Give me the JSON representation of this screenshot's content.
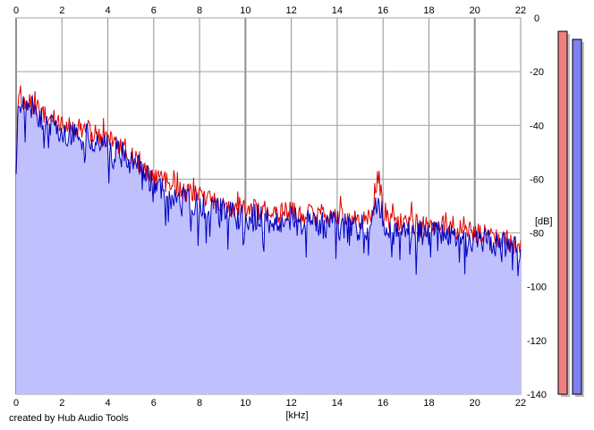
{
  "chart_data": {
    "type": "area",
    "x_unit": "[kHz]",
    "y_unit": "[dB]",
    "xlim": [
      0,
      22
    ],
    "ylim": [
      -140,
      0
    ],
    "x_ticks": [
      0,
      2,
      4,
      6,
      8,
      10,
      12,
      14,
      16,
      18,
      20,
      22
    ],
    "y_ticks": [
      0,
      -20,
      -40,
      -60,
      -80,
      -100,
      -120,
      -140
    ],
    "grid": true,
    "fill_color": "#c0c0ff",
    "series": [
      {
        "color": "#0000c0",
        "x": [
          0,
          0.1,
          0.3,
          0.6,
          1.0,
          1.5,
          2.0,
          2.5,
          3.0,
          3.5,
          4.0,
          4.5,
          5.0,
          5.5,
          6.0,
          6.5,
          7.0,
          7.5,
          8.0,
          8.5,
          9.0,
          9.5,
          10.0,
          10.5,
          11.0,
          11.5,
          12.0,
          12.5,
          13.0,
          13.5,
          14.0,
          14.5,
          15.0,
          15.5,
          15.8,
          16.0,
          16.5,
          17.0,
          17.5,
          18.0,
          18.5,
          19.0,
          19.5,
          20.0,
          20.5,
          21.0,
          21.5,
          22.0
        ],
        "y": [
          -58,
          -28,
          -34,
          -33,
          -36,
          -40,
          -42,
          -44,
          -44,
          -46,
          -47,
          -50,
          -53,
          -57,
          -62,
          -64,
          -66,
          -68,
          -69,
          -71,
          -72,
          -73,
          -74,
          -74,
          -75,
          -76,
          -75,
          -76,
          -76,
          -77,
          -77,
          -78,
          -78,
          -78,
          -64,
          -76,
          -79,
          -80,
          -80,
          -80,
          -81,
          -81,
          -82,
          -82,
          -83,
          -84,
          -85,
          -88
        ]
      },
      {
        "color": "#e00000",
        "x": [
          0,
          0.1,
          0.3,
          0.6,
          1.0,
          1.5,
          2.0,
          2.5,
          3.0,
          3.5,
          4.0,
          4.5,
          5.0,
          5.5,
          6.0,
          6.5,
          7.0,
          7.5,
          8.0,
          8.5,
          9.0,
          9.5,
          10.0,
          10.5,
          11.0,
          11.5,
          12.0,
          12.5,
          13.0,
          13.5,
          14.0,
          14.5,
          15.0,
          15.5,
          15.8,
          16.0,
          16.5,
          17.0,
          17.5,
          18.0,
          18.5,
          19.0,
          19.5,
          20.0,
          20.5,
          21.0,
          21.5,
          22.0
        ],
        "y": [
          -55,
          -26,
          -32,
          -31,
          -34,
          -38,
          -40,
          -41,
          -42,
          -43,
          -45,
          -48,
          -51,
          -55,
          -59,
          -61,
          -63,
          -65,
          -66,
          -68,
          -69,
          -70,
          -71,
          -71,
          -72,
          -73,
          -72,
          -73,
          -73,
          -74,
          -74,
          -75,
          -75,
          -75,
          -58,
          -73,
          -76,
          -77,
          -77,
          -78,
          -78,
          -79,
          -79,
          -80,
          -81,
          -82,
          -83,
          -86
        ]
      }
    ],
    "level_meters": [
      {
        "color": "#f08080",
        "value_db": -5
      },
      {
        "color": "#8080f0",
        "value_db": -8
      }
    ]
  },
  "credit": "created by Hub Audio Tools"
}
